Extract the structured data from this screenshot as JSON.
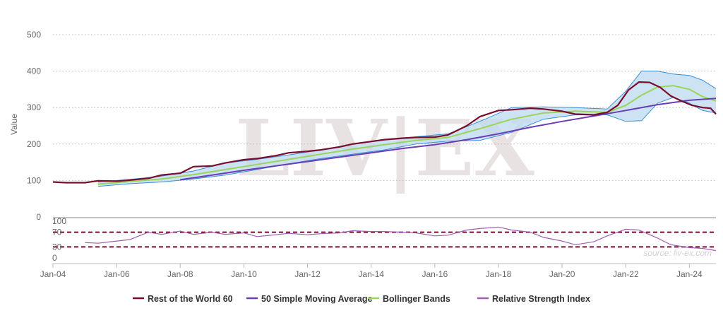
{
  "chart_data": {
    "type": "line",
    "watermark": "LIV|EX",
    "source": "source: liv-ex.com",
    "main": {
      "ylabel": "Value",
      "ylim": [
        0,
        500
      ],
      "yticks": [
        0,
        100,
        200,
        300,
        400,
        500
      ],
      "xlim": [
        "2004-01-01",
        "2024-11-01"
      ],
      "xticks": [
        {
          "date": "2004-01-01",
          "label": "Jan-04"
        },
        {
          "date": "2006-01-01",
          "label": "Jan-06"
        },
        {
          "date": "2008-01-01",
          "label": "Jan-08"
        },
        {
          "date": "2010-01-01",
          "label": "Jan-10"
        },
        {
          "date": "2012-01-01",
          "label": "Jan-12"
        },
        {
          "date": "2014-01-01",
          "label": "Jan-14"
        },
        {
          "date": "2016-01-01",
          "label": "Jan-16"
        },
        {
          "date": "2018-01-01",
          "label": "Jan-18"
        },
        {
          "date": "2020-01-01",
          "label": "Jan-20"
        },
        {
          "date": "2022-01-01",
          "label": "Jan-22"
        },
        {
          "date": "2024-01-01",
          "label": "Jan-24"
        }
      ],
      "grid": true
    },
    "rsi_panel": {
      "ylim": [
        0,
        100
      ],
      "ticks": [
        0,
        30,
        70,
        100
      ],
      "reference_lines": [
        70,
        30
      ]
    },
    "legend_position": "bottom-center",
    "series": [
      {
        "name": "Rest of the World 60",
        "color": "#7a0c2e",
        "points": [
          [
            "2004-01-01",
            96
          ],
          [
            "2004-06-01",
            94
          ],
          [
            "2005-01-01",
            94
          ],
          [
            "2005-06-01",
            99
          ],
          [
            "2006-01-01",
            98
          ],
          [
            "2006-06-01",
            101
          ],
          [
            "2007-01-01",
            106
          ],
          [
            "2007-06-01",
            115
          ],
          [
            "2008-01-01",
            120
          ],
          [
            "2008-06-01",
            138
          ],
          [
            "2009-01-01",
            140
          ],
          [
            "2009-06-01",
            148
          ],
          [
            "2010-01-01",
            157
          ],
          [
            "2010-06-01",
            160
          ],
          [
            "2011-01-01",
            168
          ],
          [
            "2011-06-01",
            176
          ],
          [
            "2012-01-01",
            180
          ],
          [
            "2012-06-01",
            184
          ],
          [
            "2013-01-01",
            192
          ],
          [
            "2013-06-01",
            200
          ],
          [
            "2014-01-01",
            207
          ],
          [
            "2014-06-01",
            212
          ],
          [
            "2015-01-01",
            216
          ],
          [
            "2015-06-01",
            218
          ],
          [
            "2016-01-01",
            219
          ],
          [
            "2016-06-01",
            225
          ],
          [
            "2017-01-01",
            250
          ],
          [
            "2017-06-01",
            275
          ],
          [
            "2018-01-01",
            292
          ],
          [
            "2018-06-01",
            294
          ],
          [
            "2019-01-01",
            298
          ],
          [
            "2019-06-01",
            296
          ],
          [
            "2020-01-01",
            290
          ],
          [
            "2020-06-01",
            282
          ],
          [
            "2021-01-01",
            280
          ],
          [
            "2021-06-01",
            287
          ],
          [
            "2021-10-01",
            306
          ],
          [
            "2022-02-01",
            348
          ],
          [
            "2022-06-01",
            370
          ],
          [
            "2022-10-01",
            369
          ],
          [
            "2023-02-01",
            355
          ],
          [
            "2023-06-01",
            332
          ],
          [
            "2023-10-01",
            318
          ],
          [
            "2024-02-01",
            306
          ],
          [
            "2024-06-01",
            300
          ],
          [
            "2024-09-01",
            298
          ],
          [
            "2024-11-01",
            282
          ]
        ]
      },
      {
        "name": "50 Simple Moving Average",
        "color": "#6a3fb5",
        "points": [
          [
            "2008-01-01",
            102
          ],
          [
            "2009-01-01",
            115
          ],
          [
            "2010-01-01",
            128
          ],
          [
            "2011-01-01",
            140
          ],
          [
            "2012-01-01",
            152
          ],
          [
            "2013-01-01",
            164
          ],
          [
            "2014-01-01",
            176
          ],
          [
            "2015-01-01",
            188
          ],
          [
            "2016-01-01",
            198
          ],
          [
            "2017-01-01",
            212
          ],
          [
            "2018-01-01",
            228
          ],
          [
            "2019-01-01",
            246
          ],
          [
            "2020-01-01",
            262
          ],
          [
            "2021-01-01",
            277
          ],
          [
            "2022-01-01",
            292
          ],
          [
            "2023-01-01",
            308
          ],
          [
            "2024-01-01",
            320
          ],
          [
            "2024-11-01",
            325
          ]
        ]
      },
      {
        "name": "Bollinger Bands",
        "color": "#9ad45a",
        "band_fill": "#bcd9ef",
        "band_edge": "#3b8fd8",
        "middle": [
          [
            "2005-06-01",
            90
          ],
          [
            "2006-06-01",
            97
          ],
          [
            "2007-06-01",
            104
          ],
          [
            "2008-06-01",
            116
          ],
          [
            "2009-06-01",
            130
          ],
          [
            "2010-06-01",
            144
          ],
          [
            "2011-06-01",
            158
          ],
          [
            "2012-06-01",
            172
          ],
          [
            "2013-06-01",
            186
          ],
          [
            "2014-06-01",
            198
          ],
          [
            "2015-06-01",
            210
          ],
          [
            "2016-06-01",
            218
          ],
          [
            "2017-06-01",
            242
          ],
          [
            "2018-06-01",
            268
          ],
          [
            "2019-06-01",
            285
          ],
          [
            "2020-06-01",
            290
          ],
          [
            "2021-06-01",
            287
          ],
          [
            "2022-01-01",
            306
          ],
          [
            "2022-07-01",
            334
          ],
          [
            "2023-01-01",
            356
          ],
          [
            "2023-07-01",
            360
          ],
          [
            "2024-01-01",
            350
          ],
          [
            "2024-06-01",
            330
          ],
          [
            "2024-11-01",
            318
          ]
        ],
        "upper": [
          [
            "2005-06-01",
            96
          ],
          [
            "2006-06-01",
            103
          ],
          [
            "2007-06-01",
            112
          ],
          [
            "2008-06-01",
            126
          ],
          [
            "2009-06-01",
            148
          ],
          [
            "2010-06-01",
            158
          ],
          [
            "2011-06-01",
            170
          ],
          [
            "2012-06-01",
            184
          ],
          [
            "2013-06-01",
            200
          ],
          [
            "2014-06-01",
            212
          ],
          [
            "2015-06-01",
            220
          ],
          [
            "2016-06-01",
            228
          ],
          [
            "2017-06-01",
            262
          ],
          [
            "2018-06-01",
            300
          ],
          [
            "2019-06-01",
            302
          ],
          [
            "2020-06-01",
            300
          ],
          [
            "2021-06-01",
            296
          ],
          [
            "2022-01-01",
            345
          ],
          [
            "2022-07-01",
            400
          ],
          [
            "2023-01-01",
            400
          ],
          [
            "2023-07-01",
            392
          ],
          [
            "2024-01-01",
            388
          ],
          [
            "2024-06-01",
            375
          ],
          [
            "2024-11-01",
            352
          ]
        ],
        "lower": [
          [
            "2005-06-01",
            84
          ],
          [
            "2006-06-01",
            91
          ],
          [
            "2007-06-01",
            96
          ],
          [
            "2008-06-01",
            104
          ],
          [
            "2009-06-01",
            115
          ],
          [
            "2010-06-01",
            130
          ],
          [
            "2011-06-01",
            146
          ],
          [
            "2012-06-01",
            160
          ],
          [
            "2013-06-01",
            172
          ],
          [
            "2014-06-01",
            184
          ],
          [
            "2015-06-01",
            200
          ],
          [
            "2016-06-01",
            208
          ],
          [
            "2017-06-01",
            210
          ],
          [
            "2018-06-01",
            232
          ],
          [
            "2019-06-01",
            268
          ],
          [
            "2020-06-01",
            280
          ],
          [
            "2021-06-01",
            280
          ],
          [
            "2022-01-01",
            262
          ],
          [
            "2022-07-01",
            264
          ],
          [
            "2023-01-01",
            312
          ],
          [
            "2023-07-01",
            328
          ],
          [
            "2024-01-01",
            312
          ],
          [
            "2024-06-01",
            292
          ],
          [
            "2024-11-01",
            285
          ]
        ]
      },
      {
        "name": "Relative Strength Index",
        "color": "#a05cb0",
        "points": [
          [
            "2005-01-01",
            42
          ],
          [
            "2005-06-01",
            40
          ],
          [
            "2006-01-01",
            46
          ],
          [
            "2006-06-01",
            50
          ],
          [
            "2007-01-01",
            70
          ],
          [
            "2007-06-01",
            64
          ],
          [
            "2008-01-01",
            73
          ],
          [
            "2008-06-01",
            64
          ],
          [
            "2009-01-01",
            70
          ],
          [
            "2009-06-01",
            64
          ],
          [
            "2010-01-01",
            68
          ],
          [
            "2010-06-01",
            58
          ],
          [
            "2011-01-01",
            63
          ],
          [
            "2011-06-01",
            67
          ],
          [
            "2012-01-01",
            63
          ],
          [
            "2012-06-01",
            66
          ],
          [
            "2013-01-01",
            68
          ],
          [
            "2013-06-01",
            74
          ],
          [
            "2014-01-01",
            72
          ],
          [
            "2014-06-01",
            72
          ],
          [
            "2015-01-01",
            70
          ],
          [
            "2015-06-01",
            68
          ],
          [
            "2016-01-01",
            60
          ],
          [
            "2016-06-01",
            62
          ],
          [
            "2017-01-01",
            76
          ],
          [
            "2017-06-01",
            80
          ],
          [
            "2018-01-01",
            84
          ],
          [
            "2018-06-01",
            76
          ],
          [
            "2019-01-01",
            70
          ],
          [
            "2019-06-01",
            56
          ],
          [
            "2020-01-01",
            46
          ],
          [
            "2020-06-01",
            36
          ],
          [
            "2021-01-01",
            44
          ],
          [
            "2021-06-01",
            60
          ],
          [
            "2022-01-01",
            78
          ],
          [
            "2022-06-01",
            76
          ],
          [
            "2023-01-01",
            54
          ],
          [
            "2023-06-01",
            36
          ],
          [
            "2024-01-01",
            28
          ],
          [
            "2024-06-01",
            26
          ],
          [
            "2024-11-01",
            20
          ]
        ]
      }
    ]
  }
}
